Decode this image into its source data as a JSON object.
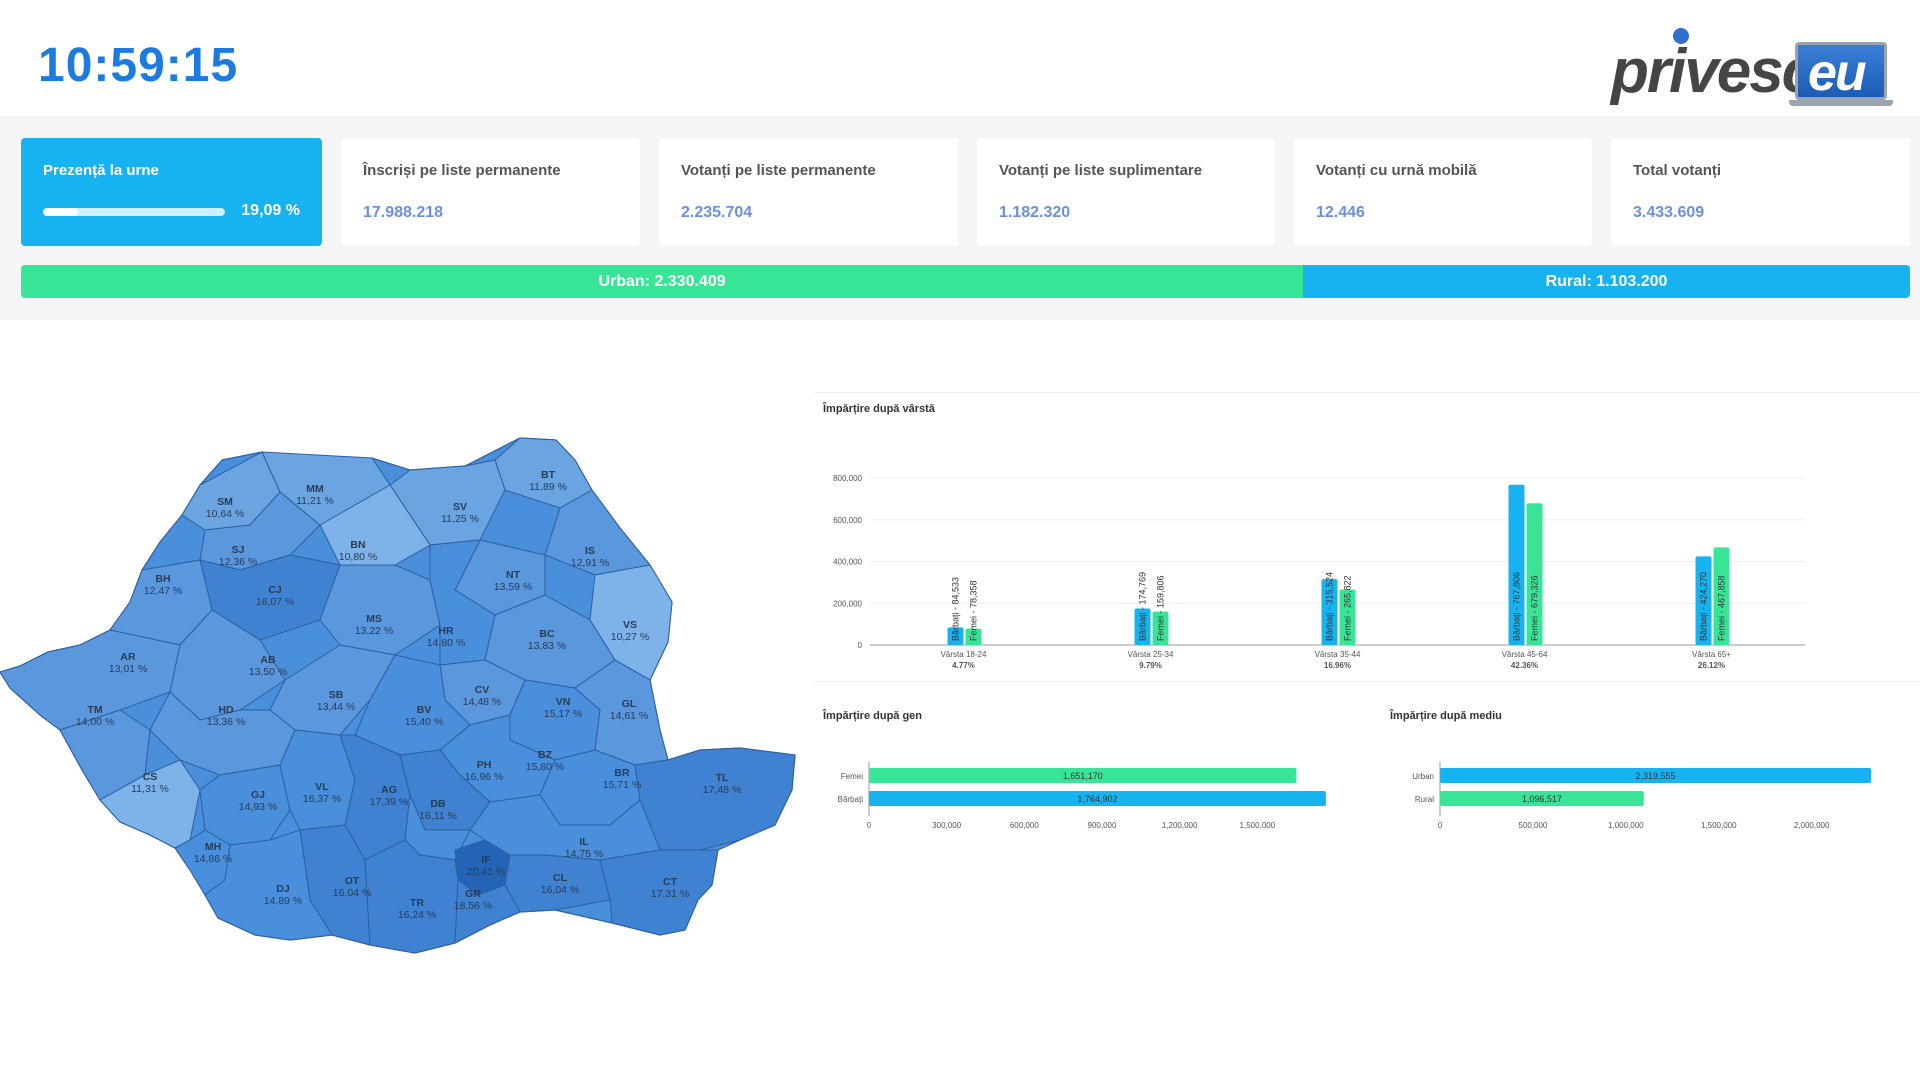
{
  "clock": "10:59:15",
  "logo": {
    "text": "privesc",
    "suffix": "eu"
  },
  "cards": {
    "presence": {
      "title": "Prezență la urne",
      "percent_text": "19,09 %",
      "fraction": 0.1909
    },
    "registered": {
      "title": "Înscriși pe liste permanente",
      "value": "17.988.218"
    },
    "voted_permanent": {
      "title": "Votanți pe liste permanente",
      "value": "2.235.704"
    },
    "voted_supplementary": {
      "title": "Votanți pe liste suplimentare",
      "value": "1.182.320"
    },
    "voted_mobile": {
      "title": "Votanți cu urnă mobilă",
      "value": "12.446"
    },
    "total": {
      "title": "Total votanți",
      "value": "3.433.609"
    }
  },
  "environment_bar": {
    "urban_label": "Urban: 2.330.409",
    "rural_label": "Rural: 1.103.200",
    "urban_value": 2330409,
    "rural_value": 1103200
  },
  "map": {
    "counties": [
      {
        "code": "SM",
        "pct": "10,64 %"
      },
      {
        "code": "MM",
        "pct": "11,21 %"
      },
      {
        "code": "BT",
        "pct": "11,89 %"
      },
      {
        "code": "SV",
        "pct": "11,25 %"
      },
      {
        "code": "SJ",
        "pct": "12,36 %"
      },
      {
        "code": "BN",
        "pct": "10,80 %"
      },
      {
        "code": "IS",
        "pct": "12,91 %"
      },
      {
        "code": "BH",
        "pct": "12,47 %"
      },
      {
        "code": "CJ",
        "pct": "16,07 %"
      },
      {
        "code": "NT",
        "pct": "13,59 %"
      },
      {
        "code": "VS",
        "pct": "10,27 %"
      },
      {
        "code": "MS",
        "pct": "13,22 %"
      },
      {
        "code": "HR",
        "pct": "14,80 %"
      },
      {
        "code": "BC",
        "pct": "13,83 %"
      },
      {
        "code": "AR",
        "pct": "13,01 %"
      },
      {
        "code": "AB",
        "pct": "13,50 %"
      },
      {
        "code": "CV",
        "pct": "14,48 %"
      },
      {
        "code": "SB",
        "pct": "13,44 %"
      },
      {
        "code": "VN",
        "pct": "15,17 %"
      },
      {
        "code": "GL",
        "pct": "14,61 %"
      },
      {
        "code": "TM",
        "pct": "14,00 %"
      },
      {
        "code": "HD",
        "pct": "13,36 %"
      },
      {
        "code": "BV",
        "pct": "15,40 %"
      },
      {
        "code": "CS",
        "pct": "11,31 %"
      },
      {
        "code": "BZ",
        "pct": "15,80 %"
      },
      {
        "code": "PH",
        "pct": "16,96 %"
      },
      {
        "code": "BR",
        "pct": "15,71 %"
      },
      {
        "code": "TL",
        "pct": "17,48 %"
      },
      {
        "code": "GJ",
        "pct": "14,93 %"
      },
      {
        "code": "VL",
        "pct": "16,37 %"
      },
      {
        "code": "AG",
        "pct": "17,39 %"
      },
      {
        "code": "DB",
        "pct": "16,11 %"
      },
      {
        "code": "MH",
        "pct": "14,86 %"
      },
      {
        "code": "IF",
        "pct": "20,41 %"
      },
      {
        "code": "IL",
        "pct": "14,75 %"
      },
      {
        "code": "OT",
        "pct": "16,04 %"
      },
      {
        "code": "DJ",
        "pct": "14,89 %"
      },
      {
        "code": "CL",
        "pct": "16,04 %"
      },
      {
        "code": "CT",
        "pct": "17,31 %"
      },
      {
        "code": "TR",
        "pct": "16,24 %"
      },
      {
        "code": "GR",
        "pct": "18,56 %"
      }
    ]
  },
  "chart_data": [
    {
      "type": "bar",
      "title": "Împărțire după vârstă",
      "categories": [
        "Vârsta 18-24",
        "Vârsta 25-34",
        "Vârsta 35-44",
        "Vârsta 45-64",
        "Vârsta 65+"
      ],
      "category_shares": [
        "4.77%",
        "9.79%",
        "16.96%",
        "42.36%",
        "26.12%"
      ],
      "series": [
        {
          "name": "Bărbați",
          "values": [
            84533,
            174769,
            315524,
            767806,
            424270
          ],
          "labels": [
            "Bărbați - 84,533",
            "Bărbați - 174,769",
            "Bărbați - 315,524",
            "Bărbați - 767,806",
            "Bărbați - 424,270"
          ]
        },
        {
          "name": "Femei",
          "values": [
            78358,
            159806,
            265822,
            679326,
            467858
          ],
          "labels": [
            "Femei - 78,358",
            "Femei - 159,806",
            "Femei - 265,822",
            "Femei - 679,326",
            "Femei - 467,858"
          ]
        }
      ],
      "ylim": [
        0,
        800000
      ],
      "yticks": [
        "0",
        "200,000",
        "400,000",
        "600,000",
        "800,000"
      ],
      "colors": [
        "#16b3f0",
        "#38e597"
      ]
    },
    {
      "type": "bar",
      "orientation": "horizontal",
      "title": "Împărțire după gen",
      "categories": [
        "Femei",
        "Bărbați"
      ],
      "values": [
        1651170,
        1764902
      ],
      "value_labels": [
        "1,651,170",
        "1,764,902"
      ],
      "colors": [
        "#38e597",
        "#16b3f0"
      ],
      "xlim": [
        0,
        1800000
      ],
      "xticks": [
        "0",
        "300,000",
        "600,000",
        "900,000",
        "1,200,000",
        "1,500,000"
      ]
    },
    {
      "type": "bar",
      "orientation": "horizontal",
      "title": "Împărțire după mediu",
      "categories": [
        "Urban",
        "Rural"
      ],
      "values": [
        2319555,
        1096517
      ],
      "value_labels": [
        "2,319,555",
        "1,096,517"
      ],
      "colors": [
        "#16b3f0",
        "#38e597"
      ],
      "xlim": [
        0,
        2400000
      ],
      "xticks": [
        "0",
        "500,000",
        "1,000,000",
        "1,500,000",
        "2,000,000"
      ]
    }
  ]
}
